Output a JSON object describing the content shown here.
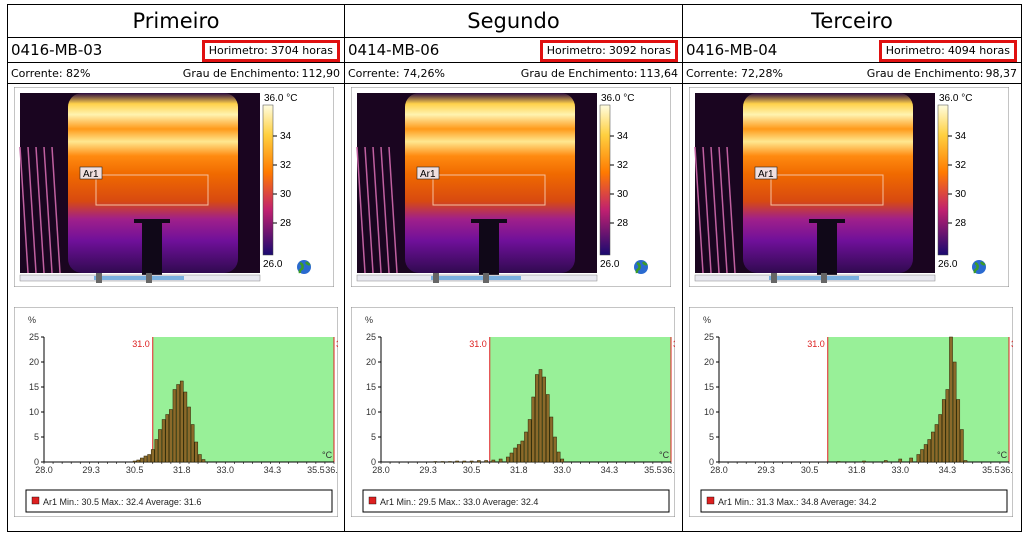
{
  "panels": [
    {
      "title": "Primeiro",
      "equipment": "0416-MB-03",
      "horimetro_label": "Horimetro:",
      "horimetro_value": "3704 horas",
      "corrente": "Corrente: 82%",
      "enchimento_label": "Grau de Enchimento:",
      "enchimento_value": "112,90",
      "scale": {
        "max_label": "36.0 °C",
        "ticks": [
          "34",
          "32",
          "30",
          "28"
        ],
        "min_label": "26.0"
      },
      "roi_label": "Ar1",
      "hist_legend": "Ar1 Min.: 30.5 Max.: 32.4 Average: 31.6",
      "avg": 31.6,
      "min": 30.5,
      "max": 32.4
    },
    {
      "title": "Segundo",
      "equipment": "0414-MB-06",
      "horimetro_label": "Horimetro:",
      "horimetro_value": "3092 horas",
      "corrente": "Corrente: 74,26%",
      "enchimento_label": "Grau de Enchimento:",
      "enchimento_value": "113,64",
      "scale": {
        "max_label": "36.0 °C",
        "ticks": [
          "34",
          "32",
          "30",
          "28"
        ],
        "min_label": "26.0"
      },
      "roi_label": "Ar1",
      "hist_legend": "Ar1 Min.: 29.5 Max.: 33.0 Average: 32.4",
      "avg": 32.4,
      "min": 29.5,
      "max": 33.0
    },
    {
      "title": "Terceiro",
      "equipment": "0416-MB-04",
      "horimetro_label": "Horimetro:",
      "horimetro_value": "4094 horas",
      "corrente": "Corrente: 72,28%",
      "enchimento_label": "Grau de Enchimento:",
      "enchimento_value": "98,37",
      "scale": {
        "max_label": "36.0 °C",
        "ticks": [
          "34",
          "32",
          "30",
          "28"
        ],
        "min_label": "26.0"
      },
      "roi_label": "Ar1",
      "hist_legend": "Ar1 Min.: 31.3 Max.: 34.8 Average: 34.2",
      "avg": 34.2,
      "min": 31.3,
      "max": 34.8
    }
  ],
  "chart_data": [
    {
      "type": "bar",
      "title": "",
      "xlabel": "°C",
      "ylabel": "%",
      "xlim": [
        28.0,
        36.0
      ],
      "ylim": [
        0,
        25
      ],
      "xticks": [
        "28.0",
        "29.3",
        "30.5",
        "31.8",
        "33.0",
        "34.3",
        "35.5",
        "36.0"
      ],
      "yticks": [
        "0",
        "5",
        "10",
        "15",
        "20",
        "25"
      ],
      "range_low": "31.0",
      "range_high": "36.0",
      "range_color": "#98f098",
      "x": [
        30.5,
        30.6,
        30.7,
        30.8,
        30.9,
        31.0,
        31.1,
        31.2,
        31.3,
        31.4,
        31.5,
        31.6,
        31.7,
        31.8,
        31.9,
        32.0,
        32.1,
        32.2,
        32.3,
        32.4
      ],
      "values": [
        0.2,
        0.4,
        0.8,
        1.2,
        1.5,
        2.5,
        4.5,
        6.5,
        8.5,
        9.5,
        10.5,
        14.5,
        15.5,
        16.2,
        14.0,
        11.0,
        7.5,
        4.0,
        1.5,
        0.5
      ]
    },
    {
      "type": "bar",
      "title": "",
      "xlabel": "°C",
      "ylabel": "%",
      "xlim": [
        28.0,
        36.0
      ],
      "ylim": [
        0,
        25
      ],
      "xticks": [
        "28.0",
        "29.3",
        "30.5",
        "31.8",
        "33.0",
        "34.3",
        "35.5",
        "36.0"
      ],
      "yticks": [
        "0",
        "5",
        "10",
        "15",
        "20",
        "25"
      ],
      "range_low": "31.0",
      "range_high": "36.0",
      "range_color": "#98f098",
      "x": [
        29.5,
        29.7,
        29.9,
        30.1,
        30.3,
        30.5,
        30.7,
        30.9,
        31.1,
        31.3,
        31.5,
        31.6,
        31.7,
        31.8,
        31.9,
        32.0,
        32.1,
        32.2,
        32.3,
        32.4,
        32.5,
        32.6,
        32.7,
        32.8,
        32.9,
        33.0
      ],
      "values": [
        0.1,
        0.1,
        0.1,
        0.2,
        0.2,
        0.2,
        0.3,
        0.3,
        0.4,
        0.6,
        1.0,
        1.8,
        2.8,
        3.5,
        4.2,
        6.0,
        8.5,
        13.0,
        17.5,
        18.5,
        17.0,
        13.5,
        9.0,
        5.0,
        2.0,
        0.6
      ]
    },
    {
      "type": "bar",
      "title": "",
      "xlabel": "°C",
      "ylabel": "%",
      "xlim": [
        28.0,
        36.0
      ],
      "ylim": [
        0,
        25
      ],
      "xticks": [
        "28.0",
        "29.3",
        "30.5",
        "31.8",
        "33.0",
        "34.3",
        "35.5",
        "36.0"
      ],
      "yticks": [
        "0",
        "5",
        "10",
        "15",
        "20",
        "25"
      ],
      "range_low": "31.0",
      "range_high": "36.0",
      "range_color": "#98f098",
      "x": [
        31.3,
        32.0,
        32.6,
        33.0,
        33.3,
        33.5,
        33.6,
        33.7,
        33.8,
        33.9,
        34.0,
        34.1,
        34.2,
        34.3,
        34.4,
        34.5,
        34.6,
        34.7,
        34.8
      ],
      "values": [
        0.1,
        0.2,
        0.3,
        0.6,
        0.8,
        1.5,
        2.5,
        3.5,
        4.5,
        6.0,
        7.5,
        9.5,
        12.5,
        14.5,
        25.0,
        20.0,
        12.5,
        6.5,
        0.3
      ]
    }
  ],
  "colors": {
    "highlight_red": "#e01010",
    "hist_range": "#98f098",
    "hist_marker": "#dd2020",
    "bar_fill": "#8b6a2a"
  }
}
